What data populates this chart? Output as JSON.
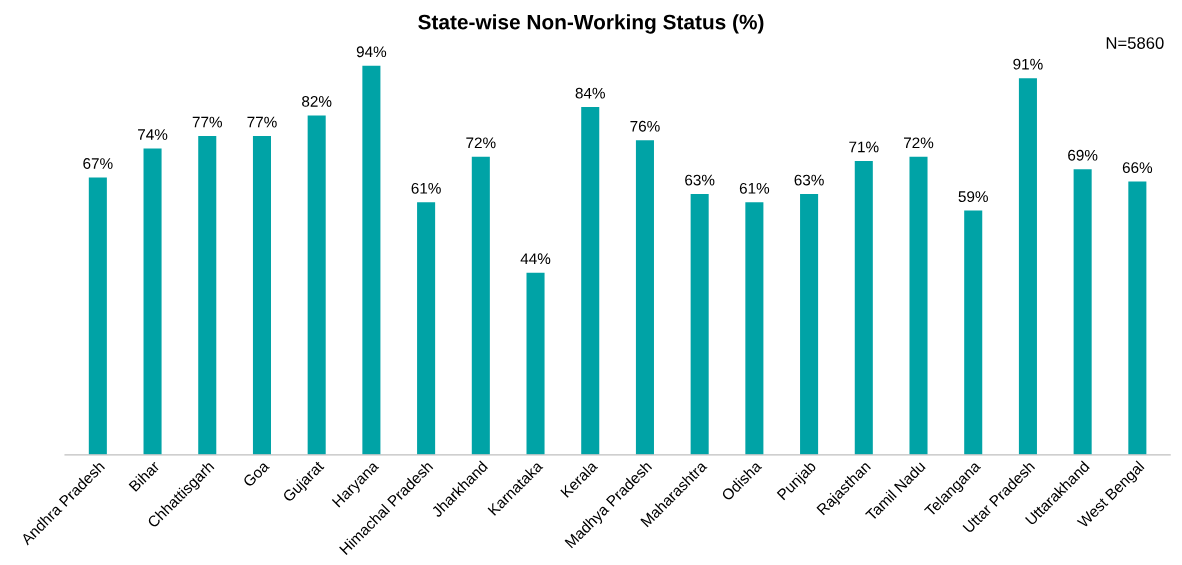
{
  "chart_data": {
    "type": "bar",
    "title": "State-wise Non-Working Status (%)",
    "categories": [
      "Andhra Pradesh",
      "Bihar",
      "Chhattisgarh",
      "Goa",
      "Gujarat",
      "Haryana",
      "Himachal Pradesh",
      "Jharkhand",
      "Karnataka",
      "Kerala",
      "Madhya Pradesh",
      "Maharashtra",
      "Odisha",
      "Punjab",
      "Rajasthan",
      "Tamil Nadu",
      "Telangana",
      "Uttar Pradesh",
      "Uttarakhand",
      "West Bengal"
    ],
    "values": [
      67,
      74,
      77,
      77,
      82,
      94,
      61,
      72,
      44,
      84,
      76,
      63,
      61,
      63,
      71,
      72,
      59,
      91,
      69,
      66
    ],
    "value_labels": [
      "67%",
      "74%",
      "77%",
      "77%",
      "82%",
      "94%",
      "61%",
      "72%",
      "44%",
      "84%",
      "76%",
      "63%",
      "61%",
      "63%",
      "71%",
      "72%",
      "59%",
      "91%",
      "69%",
      "66%"
    ],
    "color": "#00a3a6",
    "annotations": [
      "N=5860"
    ],
    "grid": false,
    "legend": false
  }
}
